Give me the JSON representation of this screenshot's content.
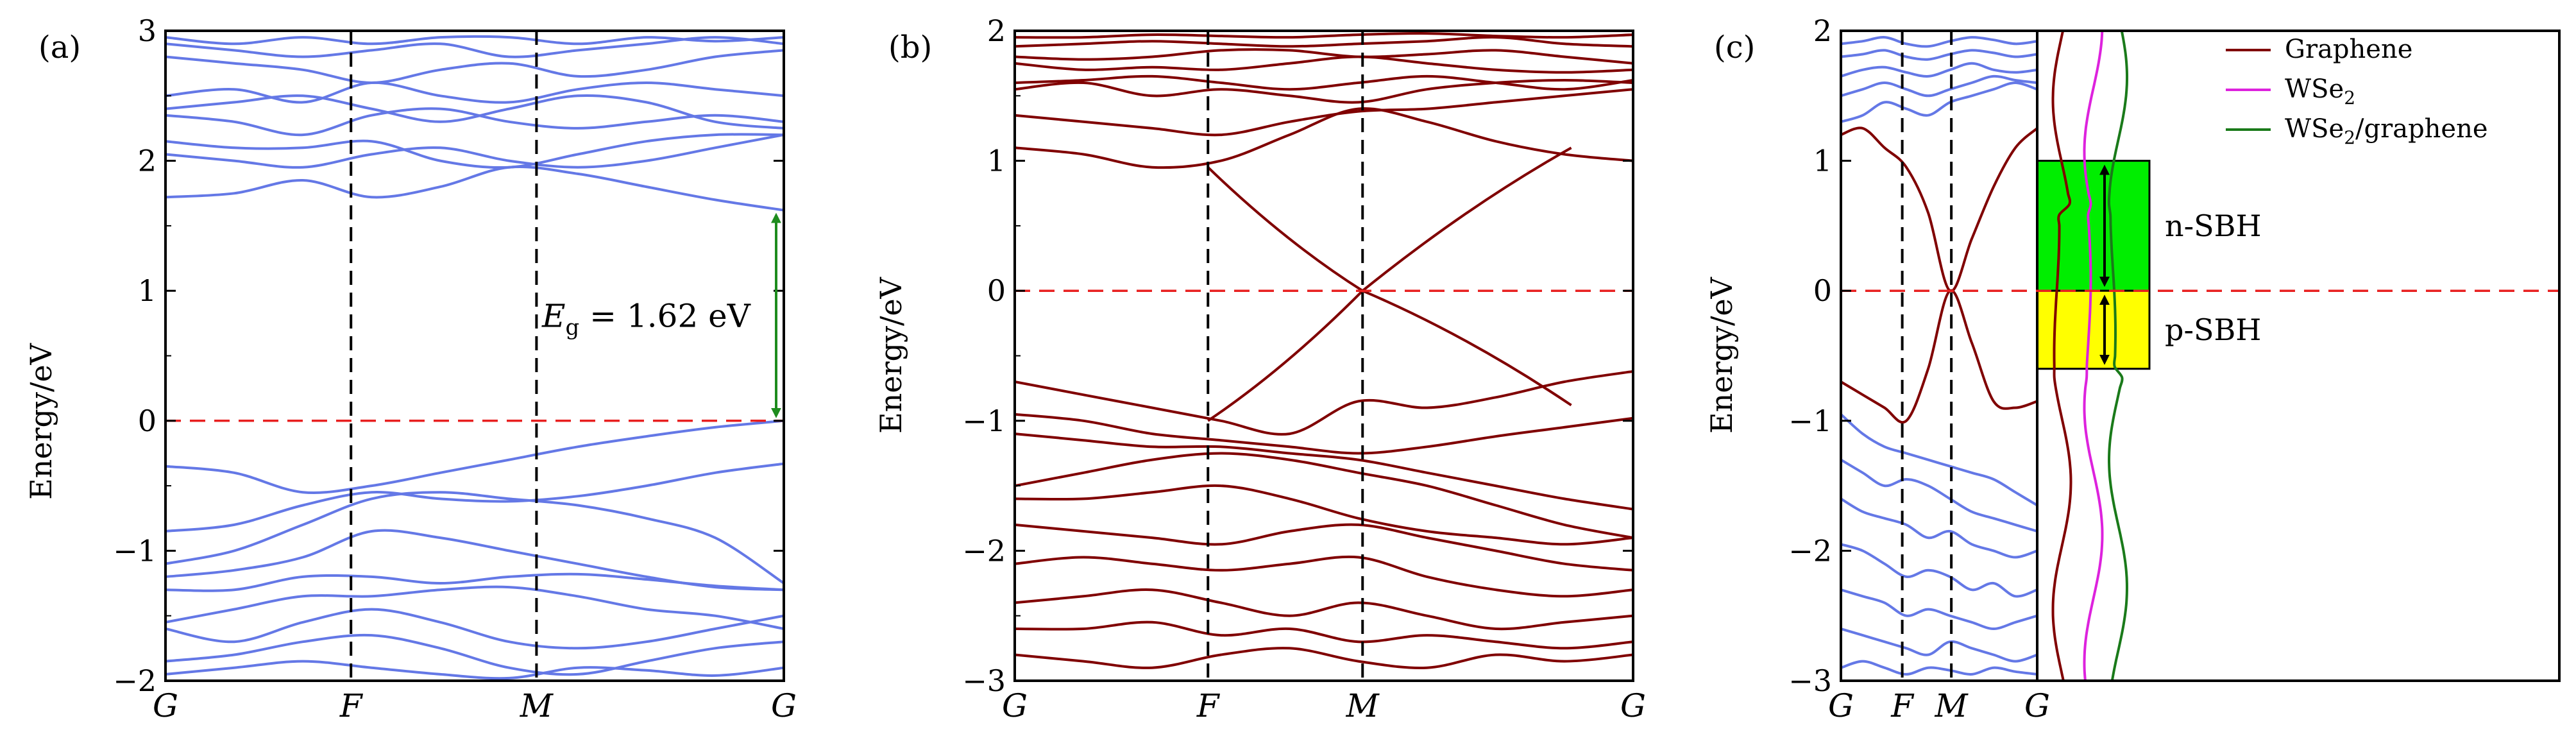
{
  "chart_data": [
    {
      "type": "line",
      "panel_label": "(a)",
      "ylabel": "Energy/eV",
      "ylim": [
        -2,
        3
      ],
      "yticks": [
        -2,
        -1,
        0,
        1,
        2,
        3
      ],
      "ytick_labels": [
        "−2",
        "−1",
        "0",
        "1",
        "2",
        "3"
      ],
      "kpath": [
        "G",
        "F",
        "M",
        "G"
      ],
      "kpositions": [
        0,
        0.3,
        0.6,
        1.0
      ],
      "fermi_level": 0,
      "band_color": "#6478e6",
      "annotation": {
        "text_prefix": "E",
        "text_sub": "g",
        "text_value": " = 1.62 eV",
        "from": 0,
        "to": 1.62,
        "color": "#1e8c1e"
      },
      "valence_bands": [
        [
          -0.35,
          -0.4,
          -0.55,
          -0.5,
          -0.4,
          -0.3,
          -0.2,
          -0.12,
          -0.05,
          0.0
        ],
        [
          -0.85,
          -0.8,
          -0.65,
          -0.55,
          -0.6,
          -0.62,
          -0.58,
          -0.5,
          -0.4,
          -0.33
        ],
        [
          -1.1,
          -1.0,
          -0.8,
          -0.6,
          -0.55,
          -0.6,
          -0.65,
          -0.75,
          -0.9,
          -1.25
        ],
        [
          -1.2,
          -1.15,
          -1.05,
          -0.85,
          -0.9,
          -1.0,
          -1.1,
          -1.2,
          -1.28,
          -1.3
        ],
        [
          -1.3,
          -1.3,
          -1.2,
          -1.2,
          -1.25,
          -1.2,
          -1.18,
          -1.22,
          -1.27,
          -1.3
        ],
        [
          -1.55,
          -1.45,
          -1.35,
          -1.35,
          -1.3,
          -1.28,
          -1.35,
          -1.45,
          -1.5,
          -1.6
        ],
        [
          -1.6,
          -1.7,
          -1.55,
          -1.45,
          -1.55,
          -1.7,
          -1.75,
          -1.7,
          -1.6,
          -1.5
        ],
        [
          -1.85,
          -1.8,
          -1.7,
          -1.65,
          -1.75,
          -1.9,
          -1.95,
          -1.85,
          -1.75,
          -1.7
        ],
        [
          -1.95,
          -1.9,
          -1.85,
          -1.9,
          -1.95,
          -1.98,
          -1.9,
          -1.92,
          -1.96,
          -1.9
        ]
      ],
      "conduction_bands": [
        [
          1.72,
          1.75,
          1.85,
          1.72,
          1.8,
          1.95,
          1.9,
          1.8,
          1.7,
          1.62
        ],
        [
          2.05,
          2.0,
          1.95,
          2.05,
          2.1,
          2.0,
          1.95,
          2.0,
          2.1,
          2.2
        ],
        [
          2.15,
          2.1,
          2.1,
          2.15,
          2.0,
          1.95,
          2.05,
          2.15,
          2.2,
          2.2
        ],
        [
          2.35,
          2.3,
          2.2,
          2.35,
          2.4,
          2.3,
          2.25,
          2.3,
          2.35,
          2.3
        ],
        [
          2.4,
          2.45,
          2.5,
          2.4,
          2.3,
          2.4,
          2.5,
          2.45,
          2.3,
          2.25
        ],
        [
          2.5,
          2.55,
          2.45,
          2.6,
          2.5,
          2.45,
          2.55,
          2.6,
          2.55,
          2.5
        ],
        [
          2.8,
          2.75,
          2.7,
          2.6,
          2.7,
          2.75,
          2.65,
          2.7,
          2.8,
          2.85
        ],
        [
          2.9,
          2.85,
          2.8,
          2.85,
          2.9,
          2.8,
          2.85,
          2.9,
          2.95,
          2.9
        ],
        [
          2.95,
          2.9,
          2.95,
          2.9,
          2.95,
          2.95,
          2.9,
          2.95,
          2.92,
          2.95
        ]
      ]
    },
    {
      "type": "line",
      "panel_label": "(b)",
      "ylabel": "Energy/eV",
      "ylim": [
        -3,
        2
      ],
      "yticks": [
        -3,
        -2,
        -1,
        0,
        1,
        2
      ],
      "ytick_labels": [
        "−3",
        "−2",
        "−1",
        "0",
        "1",
        "2"
      ],
      "kpath": [
        "G",
        "F",
        "M",
        "G"
      ],
      "kpositions": [
        0,
        0.3125,
        0.5625,
        1.0
      ],
      "fermi_level": 0,
      "band_color": "#800000",
      "dirac_point": [
        0.5625,
        0.0
      ],
      "valence_bands": [
        [
          -0.7,
          -0.8,
          -0.9,
          -1.0,
          -1.1,
          -0.85,
          -0.9,
          -0.82,
          -0.7,
          -0.62
        ],
        [
          -0.95,
          -1.0,
          -1.1,
          -1.15,
          -1.2,
          -1.25,
          -1.2,
          -1.12,
          -1.05,
          -0.98
        ],
        [
          -1.1,
          -1.15,
          -1.2,
          -1.2,
          -1.25,
          -1.3,
          -1.4,
          -1.5,
          -1.6,
          -1.68
        ],
        [
          -1.5,
          -1.4,
          -1.3,
          -1.25,
          -1.3,
          -1.4,
          -1.5,
          -1.65,
          -1.8,
          -1.9
        ],
        [
          -1.6,
          -1.6,
          -1.55,
          -1.5,
          -1.6,
          -1.75,
          -1.85,
          -1.9,
          -1.95,
          -1.9
        ],
        [
          -1.8,
          -1.85,
          -1.9,
          -1.95,
          -1.85,
          -1.8,
          -1.9,
          -2.0,
          -2.1,
          -2.15
        ],
        [
          -2.1,
          -2.05,
          -2.1,
          -2.15,
          -2.1,
          -2.05,
          -2.2,
          -2.3,
          -2.35,
          -2.3
        ],
        [
          -2.4,
          -2.35,
          -2.3,
          -2.4,
          -2.5,
          -2.4,
          -2.5,
          -2.6,
          -2.55,
          -2.5
        ],
        [
          -2.6,
          -2.6,
          -2.55,
          -2.65,
          -2.6,
          -2.7,
          -2.65,
          -2.7,
          -2.75,
          -2.7
        ],
        [
          -2.8,
          -2.85,
          -2.9,
          -2.8,
          -2.75,
          -2.85,
          -2.9,
          -2.8,
          -2.85,
          -2.8
        ]
      ],
      "conduction_bands": [
        [
          1.1,
          1.05,
          0.95,
          1.0,
          1.2,
          1.4,
          1.3,
          1.15,
          1.05,
          1.0
        ],
        [
          1.35,
          1.3,
          1.25,
          1.2,
          1.3,
          1.38,
          1.4,
          1.45,
          1.5,
          1.55
        ],
        [
          1.55,
          1.6,
          1.5,
          1.55,
          1.5,
          1.45,
          1.55,
          1.6,
          1.62,
          1.6
        ],
        [
          1.6,
          1.62,
          1.65,
          1.6,
          1.55,
          1.6,
          1.65,
          1.6,
          1.55,
          1.62
        ],
        [
          1.75,
          1.7,
          1.72,
          1.7,
          1.75,
          1.8,
          1.75,
          1.7,
          1.68,
          1.7
        ],
        [
          1.8,
          1.78,
          1.8,
          1.85,
          1.85,
          1.8,
          1.82,
          1.85,
          1.8,
          1.75
        ],
        [
          1.88,
          1.9,
          1.92,
          1.9,
          1.88,
          1.9,
          1.92,
          1.95,
          1.9,
          1.88
        ],
        [
          1.95,
          1.95,
          1.97,
          1.96,
          1.95,
          1.97,
          1.98,
          1.96,
          1.95,
          1.97
        ]
      ]
    },
    {
      "type": "line",
      "panel_label": "(c)",
      "ylabel": "Energy/eV",
      "ylim": [
        -3,
        2
      ],
      "yticks": [
        -3,
        -2,
        -1,
        0,
        1,
        2
      ],
      "ytick_labels": [
        "−3",
        "−2",
        "−1",
        "0",
        "1",
        "2"
      ],
      "kpath": [
        "G",
        "F",
        "M",
        "G"
      ],
      "kpositions": [
        0,
        0.3125,
        0.5625,
        1.0
      ],
      "fermi_level": 0,
      "graphene_color": "#800000",
      "wse2_color": "#6478e6",
      "wse2_valence_bands": [
        [
          -0.95,
          -1.1,
          -1.2,
          -1.25,
          -1.3,
          -1.35,
          -1.4,
          -1.45,
          -1.55,
          -1.65
        ],
        [
          -1.3,
          -1.4,
          -1.5,
          -1.45,
          -1.5,
          -1.6,
          -1.7,
          -1.75,
          -1.8,
          -1.85
        ],
        [
          -1.6,
          -1.7,
          -1.75,
          -1.8,
          -1.9,
          -1.85,
          -1.95,
          -2.0,
          -2.05,
          -2.0
        ],
        [
          -1.95,
          -2.0,
          -2.1,
          -2.2,
          -2.15,
          -2.2,
          -2.3,
          -2.25,
          -2.35,
          -2.3
        ],
        [
          -2.3,
          -2.35,
          -2.4,
          -2.5,
          -2.45,
          -2.5,
          -2.55,
          -2.6,
          -2.55,
          -2.5
        ],
        [
          -2.6,
          -2.65,
          -2.7,
          -2.75,
          -2.8,
          -2.7,
          -2.75,
          -2.8,
          -2.85,
          -2.8
        ],
        [
          -2.9,
          -2.85,
          -2.9,
          -2.95,
          -2.9,
          -2.92,
          -2.95,
          -2.9,
          -2.93,
          -2.95
        ]
      ],
      "wse2_conduction_bands": [
        [
          1.3,
          1.35,
          1.45,
          1.4,
          1.35,
          1.45,
          1.5,
          1.55,
          1.6,
          1.55
        ],
        [
          1.5,
          1.55,
          1.6,
          1.55,
          1.5,
          1.55,
          1.6,
          1.65,
          1.62,
          1.6
        ],
        [
          1.65,
          1.7,
          1.72,
          1.68,
          1.65,
          1.7,
          1.75,
          1.7,
          1.68,
          1.7
        ],
        [
          1.8,
          1.82,
          1.85,
          1.8,
          1.78,
          1.82,
          1.85,
          1.83,
          1.8,
          1.82
        ],
        [
          1.9,
          1.92,
          1.95,
          1.9,
          1.88,
          1.92,
          1.95,
          1.93,
          1.9,
          1.92
        ]
      ],
      "graphene_bands": [
        [
          1.2,
          1.25,
          1.1,
          0.95,
          0.6,
          0.0,
          0.4,
          0.8,
          1.1,
          1.25
        ],
        [
          -0.7,
          -0.8,
          -0.9,
          -1.0,
          -0.6,
          0.0,
          -0.4,
          -0.85,
          -0.9,
          -0.85
        ]
      ],
      "dos_curves": [
        {
          "name": "Graphene",
          "color": "#800000",
          "offset": 0.22
        },
        {
          "name": "WSe",
          "name_sub": "2",
          "color": "#dd22dd",
          "offset": 0.5
        },
        {
          "name": "WSe",
          "name_sub": "2",
          "name_suffix": "/graphene",
          "color": "#1a7a1a",
          "offset": 0.72
        }
      ],
      "regions": [
        {
          "label": "n-SBH",
          "from": 0,
          "to": 1.0,
          "color": "#00ee00"
        },
        {
          "label": "p-SBH",
          "from": -0.6,
          "to": 0,
          "color": "#ffff00"
        }
      ],
      "legend_placement": "top-right"
    }
  ]
}
